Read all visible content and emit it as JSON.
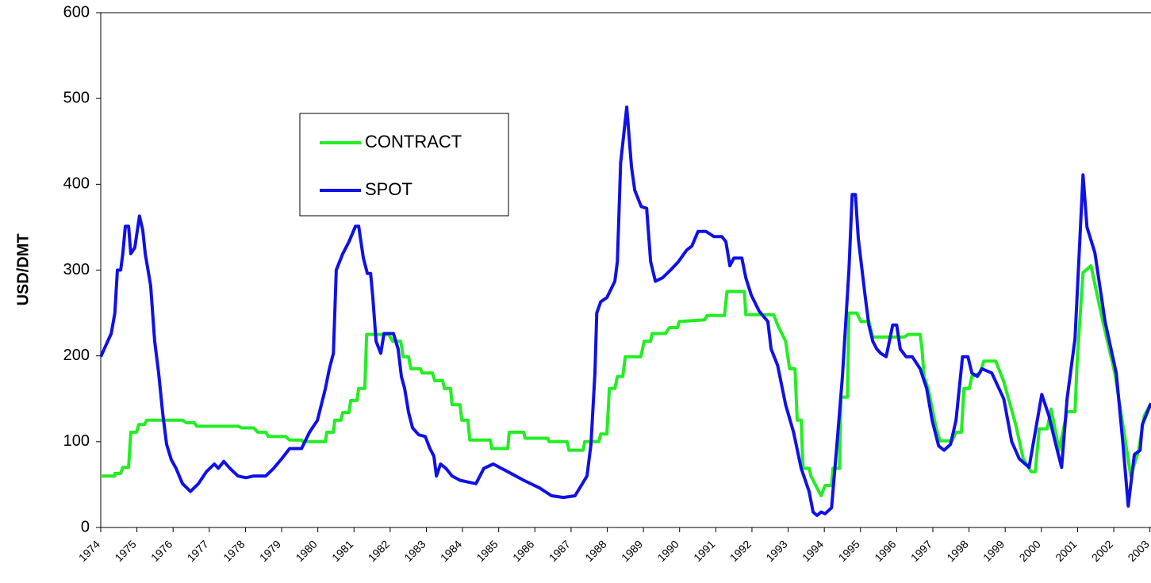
{
  "chart_data": {
    "type": "line",
    "y_label": "USD/DMT",
    "xlim": [
      1974,
      2003.03
    ],
    "xticks": [
      1974,
      1975,
      1976,
      1977,
      1978,
      1979,
      1980,
      1981,
      1982,
      1983,
      1984,
      1985,
      1986,
      1987,
      1988,
      1989,
      1990,
      1991,
      1992,
      1993,
      1994,
      1995,
      1996,
      1997,
      1998,
      1999,
      2000,
      2001,
      2002,
      2003
    ],
    "ylim": [
      0,
      600
    ],
    "yticks": [
      0,
      100,
      200,
      300,
      400,
      500,
      600
    ],
    "series": [
      {
        "name": "CONTRACT",
        "color": "#22ee22",
        "x": [
          1974.0,
          1974.39,
          1974.39,
          1974.55,
          1974.61,
          1974.77,
          1974.83,
          1974.99,
          1975.05,
          1975.21,
          1975.27,
          1976.26,
          1976.37,
          1976.59,
          1976.65,
          1977.79,
          1977.9,
          1978.23,
          1978.34,
          1978.56,
          1978.63,
          1979.11,
          1979.22,
          1979.55,
          1979.59,
          1980.21,
          1980.25,
          1980.43,
          1980.47,
          1980.64,
          1980.69,
          1980.86,
          1980.91,
          1981.08,
          1981.13,
          1981.3,
          1981.35,
          1981.96,
          1982.07,
          1982.29,
          1982.36,
          1982.51,
          1982.57,
          1982.84,
          1982.88,
          1983.17,
          1983.23,
          1983.45,
          1983.5,
          1983.67,
          1983.71,
          1983.93,
          1983.98,
          1984.15,
          1984.2,
          1984.77,
          1984.81,
          1985.25,
          1985.29,
          1985.69,
          1985.73,
          1986.35,
          1986.39,
          1986.89,
          1986.94,
          1987.33,
          1987.38,
          1987.77,
          1987.82,
          1987.99,
          1988.06,
          1988.21,
          1988.28,
          1988.43,
          1988.5,
          1988.93,
          1989.02,
          1989.2,
          1989.24,
          1989.61,
          1989.72,
          1989.94,
          1989.99,
          1990.69,
          1990.76,
          1991.24,
          1991.31,
          1991.79,
          1991.83,
          1992.6,
          1992.71,
          1992.93,
          1993.04,
          1993.19,
          1993.25,
          1993.36,
          1993.41,
          1993.58,
          1993.63,
          1993.8,
          1993.91,
          1994.02,
          1994.2,
          1994.24,
          1994.42,
          1994.46,
          1994.64,
          1994.68,
          1994.9,
          1995.01,
          1995.23,
          1995.34,
          1996.21,
          1996.32,
          1996.65,
          1996.7,
          1996.76,
          1996.87,
          1997.09,
          1997.2,
          1997.53,
          1997.64,
          1997.79,
          1997.86,
          1998.01,
          1998.08,
          1998.3,
          1998.41,
          1998.74,
          1998.96,
          1999.29,
          1999.5,
          1999.72,
          1999.83,
          1999.94,
          2000.16,
          2000.27,
          2000.49,
          2000.71,
          2000.93,
          2000.99,
          2001.15,
          2001.37,
          2001.7,
          2002.03,
          2002.47,
          2002.69,
          2002.84,
          2003.03
        ],
        "values": [
          60,
          60,
          63,
          63,
          70,
          70,
          111,
          111,
          120,
          120,
          125,
          125,
          122,
          122,
          118,
          118,
          116,
          116,
          111,
          111,
          106,
          106,
          102,
          102,
          100,
          100,
          111,
          111,
          125,
          125,
          134,
          134,
          148,
          148,
          162,
          162,
          225,
          225,
          217,
          217,
          199,
          199,
          185,
          185,
          180,
          180,
          171,
          171,
          162,
          162,
          143,
          143,
          125,
          125,
          102,
          102,
          92,
          92,
          111,
          111,
          104,
          104,
          100,
          100,
          90,
          90,
          100,
          100,
          109,
          109,
          162,
          162,
          176,
          176,
          199,
          199,
          217,
          217,
          226,
          226,
          233,
          233,
          240,
          242,
          247,
          247,
          275,
          275,
          248,
          248,
          236,
          217,
          185,
          185,
          125,
          125,
          69,
          69,
          60,
          46,
          37,
          49,
          49,
          69,
          69,
          152,
          152,
          250,
          250,
          240,
          240,
          222,
          222,
          225,
          225,
          208,
          176,
          162,
          116,
          101,
          101,
          111,
          111,
          162,
          162,
          176,
          180,
          194,
          194,
          170,
          120,
          80,
          65,
          65,
          115,
          115,
          138,
          90,
          135,
          135,
          195,
          297,
          305,
          240,
          180,
          60,
          90,
          130,
          145
        ]
      },
      {
        "name": "SPOT",
        "color": "#1010e8",
        "x": [
          1974.0,
          1974.29,
          1974.39,
          1974.46,
          1974.55,
          1974.61,
          1974.68,
          1974.77,
          1974.83,
          1974.94,
          1975.07,
          1975.16,
          1975.23,
          1975.38,
          1975.49,
          1975.6,
          1975.71,
          1975.82,
          1975.95,
          1976.08,
          1976.26,
          1976.48,
          1976.7,
          1976.92,
          1977.14,
          1977.25,
          1977.4,
          1977.57,
          1977.79,
          1978.01,
          1978.23,
          1978.56,
          1978.78,
          1979.0,
          1979.22,
          1979.55,
          1979.77,
          1979.99,
          1980.21,
          1980.32,
          1980.43,
          1980.51,
          1980.69,
          1980.86,
          1981.04,
          1981.13,
          1981.26,
          1981.37,
          1981.46,
          1981.52,
          1981.61,
          1981.74,
          1981.83,
          1982.09,
          1982.22,
          1982.31,
          1982.4,
          1982.51,
          1982.62,
          1982.79,
          1982.97,
          1983.1,
          1983.21,
          1983.28,
          1983.39,
          1983.54,
          1983.71,
          1983.93,
          1984.15,
          1984.37,
          1984.59,
          1984.85,
          1985.07,
          1985.25,
          1985.69,
          1986.13,
          1986.46,
          1986.79,
          1987.11,
          1987.44,
          1987.55,
          1987.66,
          1987.71,
          1987.82,
          1987.99,
          1988.21,
          1988.28,
          1988.37,
          1988.54,
          1988.67,
          1988.76,
          1988.94,
          1989.09,
          1989.2,
          1989.33,
          1989.53,
          1989.75,
          1989.97,
          1990.19,
          1990.34,
          1990.51,
          1990.73,
          1990.95,
          1991.17,
          1991.28,
          1991.39,
          1991.5,
          1991.72,
          1991.83,
          1991.98,
          1992.2,
          1992.44,
          1992.53,
          1992.71,
          1992.93,
          1993.15,
          1993.36,
          1993.58,
          1993.69,
          1993.8,
          1993.91,
          1994.02,
          1994.2,
          1994.35,
          1994.5,
          1994.68,
          1994.77,
          1994.86,
          1994.94,
          1995.12,
          1995.23,
          1995.34,
          1995.45,
          1995.56,
          1995.71,
          1995.78,
          1995.89,
          1996.0,
          1996.1,
          1996.26,
          1996.43,
          1996.65,
          1996.83,
          1996.98,
          1997.16,
          1997.31,
          1997.49,
          1997.64,
          1997.82,
          1997.97,
          1998.08,
          1998.23,
          1998.36,
          1998.63,
          1998.96,
          1999.18,
          1999.39,
          1999.66,
          2000.01,
          2000.21,
          2000.38,
          2000.56,
          2000.71,
          2000.93,
          2001.15,
          2001.26,
          2001.48,
          2001.76,
          2002.07,
          2002.25,
          2002.4,
          2002.57,
          2002.73,
          2002.79,
          2003.03
        ],
        "values": [
          199,
          226,
          250,
          300,
          300,
          319,
          351,
          351,
          319,
          326,
          363,
          347,
          319,
          282,
          217,
          180,
          134,
          97,
          79,
          69,
          51,
          42,
          51,
          65,
          74,
          69,
          77,
          69,
          60,
          58,
          60,
          60,
          69,
          80,
          92,
          92,
          111,
          125,
          162,
          185,
          203,
          300,
          319,
          333,
          351,
          351,
          314,
          296,
          296,
          268,
          217,
          203,
          226,
          226,
          208,
          176,
          162,
          134,
          116,
          108,
          106,
          92,
          83,
          60,
          74,
          69,
          60,
          55,
          53,
          51,
          69,
          74,
          69,
          65,
          55,
          46,
          37,
          35,
          37,
          60,
          97,
          180,
          250,
          263,
          268,
          287,
          310,
          425,
          490,
          420,
          393,
          374,
          372,
          310,
          287,
          291,
          300,
          310,
          323,
          328,
          345,
          345,
          339,
          339,
          333,
          305,
          314,
          314,
          291,
          271,
          252,
          240,
          208,
          189,
          143,
          111,
          69,
          42,
          18,
          14,
          18,
          16,
          23,
          97,
          176,
          300,
          388,
          388,
          337,
          273,
          236,
          217,
          208,
          203,
          199,
          213,
          236,
          236,
          208,
          199,
          199,
          185,
          162,
          125,
          95,
          90,
          97,
          125,
          199,
          199,
          180,
          176,
          185,
          180,
          150,
          100,
          80,
          70,
          155,
          130,
          100,
          70,
          150,
          220,
          411,
          350,
          320,
          240,
          180,
          100,
          25,
          85,
          90,
          120,
          145
        ]
      }
    ]
  }
}
